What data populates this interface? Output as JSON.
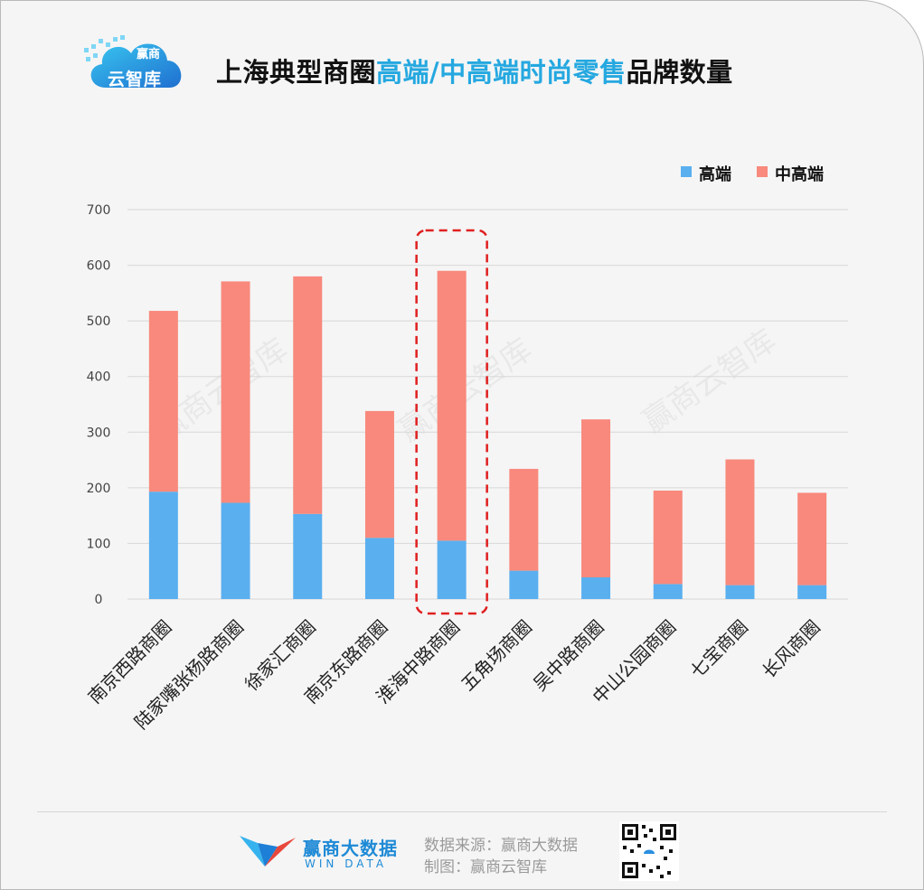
{
  "header": {
    "logo_text_line1": "赢商",
    "logo_text_line2": "云智库",
    "title_part1": "上海典型商圈",
    "title_part2": "高端/中高端时尚零售",
    "title_part3": "品牌数量"
  },
  "colors": {
    "high_end": "#5aafef",
    "mid_high": "#f8897c",
    "title_highlight": "#25a8e0",
    "highlight_box": "#e02020",
    "grid": "#d8d8d8"
  },
  "chart_data": {
    "type": "bar",
    "stacked": true,
    "categories": [
      "南京西路商圈",
      "陆家嘴张杨路商圈",
      "徐家汇商圈",
      "南京东路商圈",
      "淮海中路商圈",
      "五角场商圈",
      "吴中路商圈",
      "中山公园商圈",
      "七宝商圈",
      "长风商圈"
    ],
    "series": [
      {
        "name": "高端",
        "color": "#5aafef",
        "values": [
          193,
          173,
          153,
          110,
          105,
          51,
          39,
          27,
          25,
          25
        ]
      },
      {
        "name": "中高端",
        "color": "#f8897c",
        "values": [
          325,
          398,
          427,
          228,
          485,
          183,
          284,
          168,
          226,
          166
        ]
      }
    ],
    "yticks": [
      "0",
      "100",
      "200",
      "300",
      "400",
      "500",
      "600",
      "700"
    ],
    "ylim": [
      0,
      700
    ],
    "grid": true,
    "legend_position": "top-right",
    "highlighted_category": "淮海中路商圈"
  },
  "watermark": "赢商云智库",
  "footer": {
    "brand_cn": "赢商大数据",
    "brand_en": "WIN DATA",
    "source": "数据来源：赢商大数据",
    "maker": "制图：赢商云智库"
  }
}
